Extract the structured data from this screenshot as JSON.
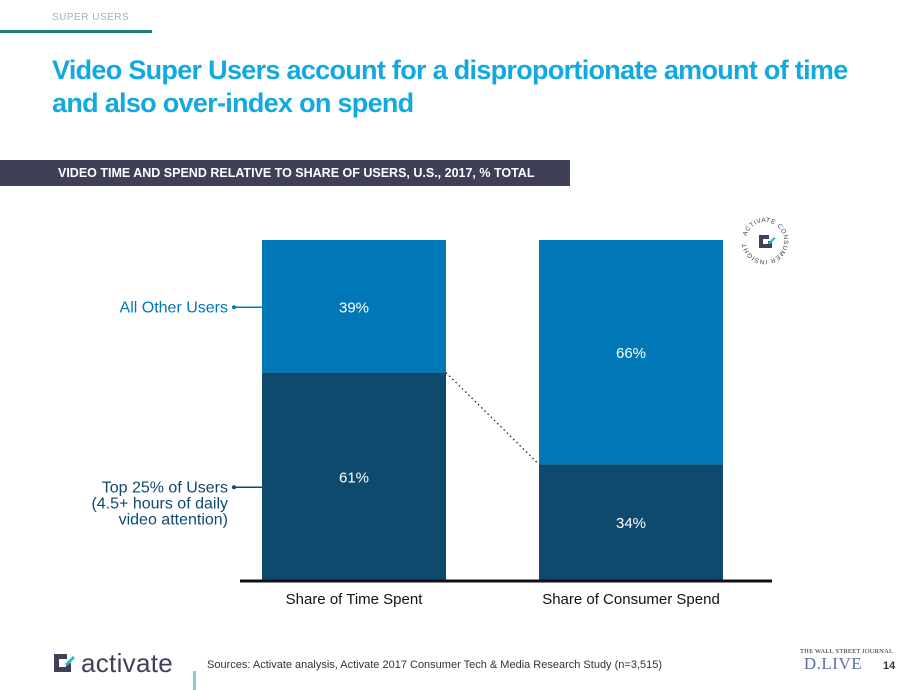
{
  "header": {
    "section_label": "SUPER USERS",
    "title": "Video Super Users account for a disproportionate amount of time and also over-index on spend",
    "subtitle": "VIDEO TIME AND SPEND RELATIVE TO SHARE OF USERS, U.S., 2017, % TOTAL"
  },
  "badge": {
    "text": "ACTIVATE CONSUMER INSIGHT",
    "icon": "activate-logo-icon"
  },
  "chart_data": {
    "type": "bar",
    "stacked": true,
    "categories": [
      "Share of Time Spent",
      "Share of Consumer Spend"
    ],
    "series": [
      {
        "values": [
          61,
          34
        ],
        "labels": [
          "61%",
          "34%"
        ],
        "color": "#0d4a6e"
      },
      {
        "values": [
          39,
          66
        ],
        "labels": [
          "39%",
          "66%"
        ],
        "color": "#0077b6"
      }
    ],
    "ylim": [
      0,
      100
    ],
    "legend": {
      "placement": "left",
      "other": "All Other Users",
      "top_line1": "Top 25% of Users",
      "top_line2": "(4.5+ hours of daily",
      "top_line3": "video attention)"
    },
    "connector": "dotted"
  },
  "footer": {
    "logo_text": "activate",
    "sources": "Sources: Activate analysis, Activate 2017 Consumer Tech & Media Research Study (n=3,515)",
    "partner_small": "THE WALL STREET JOURNAL",
    "partner_big": "D.LIVE",
    "page_number": "14"
  },
  "colors": {
    "accent": "#12a8e0",
    "dark_bar": "#0d4a6e",
    "light_bar": "#0077b6",
    "subtitle_bg": "#3f3f57",
    "legend_text": "#0077b6",
    "legend_text_dark": "#0d4a6e"
  }
}
